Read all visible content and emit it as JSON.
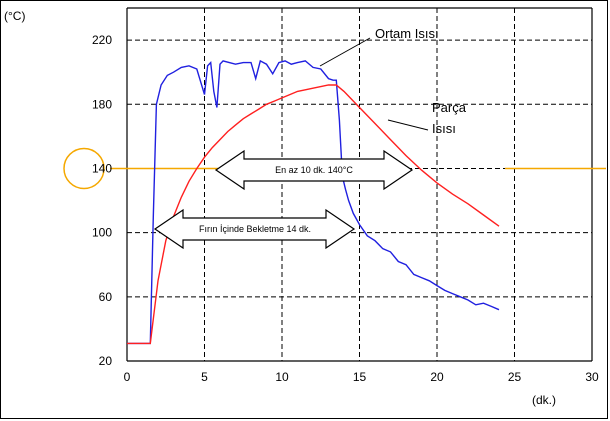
{
  "chart_data": {
    "type": "line",
    "xlabel": "(dk.)",
    "ylabel": "(°C)",
    "xlim": [
      0,
      30
    ],
    "ylim": [
      20,
      240
    ],
    "xticks": [
      "0",
      "5",
      "10",
      "15",
      "20",
      "25",
      "30"
    ],
    "yticks": [
      "20",
      "60",
      "100",
      "140",
      "180",
      "220"
    ],
    "grid": true,
    "reference_line": {
      "y": 140,
      "color": "#f5a800"
    },
    "series": [
      {
        "name": "Ortam Isısı",
        "color": "#2020e0",
        "x": [
          0,
          1.5,
          1.7,
          1.9,
          2.2,
          2.6,
          3.0,
          3.5,
          4.0,
          4.5,
          5.0,
          5.2,
          5.4,
          5.6,
          5.8,
          6.0,
          6.2,
          6.6,
          7.0,
          7.5,
          8.0,
          8.3,
          8.6,
          9.0,
          9.4,
          9.8,
          10.2,
          10.6,
          11.0,
          11.5,
          12.0,
          12.5,
          13.0,
          13.3,
          13.5,
          13.7,
          13.9,
          14.1,
          14.3,
          14.6,
          15.0,
          15.5,
          16.0,
          16.5,
          17.0,
          17.5,
          18.0,
          18.5,
          19.0,
          19.5,
          20.0,
          20.5,
          21.0,
          21.5,
          22.0,
          22.5,
          23.0,
          23.5,
          24.0
        ],
        "y": [
          31,
          31,
          110,
          180,
          192,
          198,
          200,
          203,
          204,
          202,
          186,
          204,
          206,
          188,
          178,
          205,
          207,
          206,
          205,
          206,
          206,
          196,
          207,
          205,
          199,
          206,
          207,
          205,
          206,
          207,
          203,
          202,
          196,
          195,
          195,
          170,
          135,
          127,
          120,
          112,
          105,
          98,
          95,
          90,
          88,
          82,
          80,
          74,
          72,
          70,
          67,
          64,
          62,
          60,
          58,
          55,
          56,
          54,
          52
        ]
      },
      {
        "name": "Parça Isısı",
        "color": "#ff2020",
        "x": [
          0,
          1.5,
          2.0,
          2.5,
          3.0,
          3.5,
          4.0,
          4.5,
          5.0,
          5.5,
          6.0,
          6.5,
          7.0,
          7.5,
          8.0,
          8.5,
          9.0,
          9.5,
          10.0,
          10.5,
          11.0,
          11.5,
          12.0,
          12.5,
          13.0,
          13.5,
          14.0,
          15.0,
          16.0,
          17.0,
          18.0,
          19.0,
          20.0,
          21.0,
          22.0,
          23.0,
          24.0
        ],
        "y": [
          31,
          31,
          70,
          95,
          110,
          122,
          132,
          140,
          147,
          153,
          158,
          163,
          167,
          171,
          174,
          177,
          180,
          182,
          184,
          186,
          188,
          189,
          190,
          191,
          192,
          192,
          188,
          178,
          168,
          158,
          148,
          139,
          131,
          124,
          118,
          111,
          104
        ]
      }
    ],
    "annotations": [
      {
        "text": "Ortam Isısı"
      },
      {
        "text": "Parça"
      },
      {
        "text": "Isısı"
      },
      {
        "text": "En az 10 dk. 140°C"
      },
      {
        "text": "Fırın İçinde Bekletme 14 dk."
      }
    ]
  }
}
